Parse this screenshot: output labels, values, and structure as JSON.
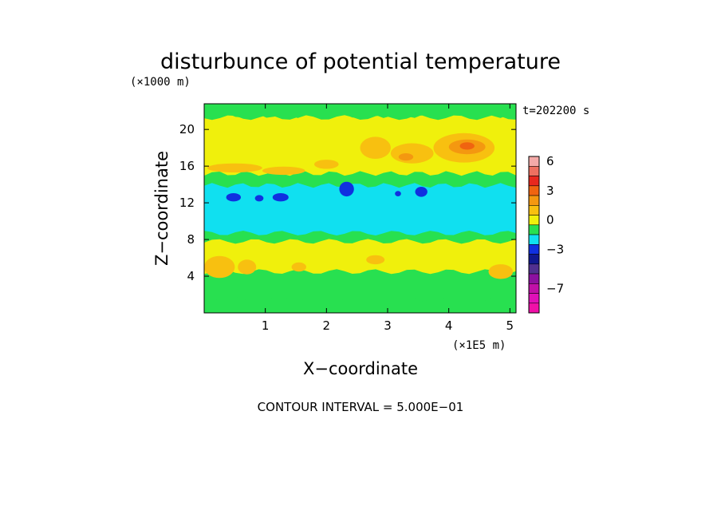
{
  "chart_data": {
    "type": "heatmap",
    "title": "disturbunce of potential temperature",
    "xlabel": "X−coordinate",
    "ylabel": "Z−coordinate",
    "x_unit": "(×1E5 m)",
    "y_unit": "(×1000 m)",
    "time_label": "t=202200 s",
    "footer": "CONTOUR INTERVAL = 5.000E−01",
    "xlim": [
      0,
      5.1
    ],
    "ylim": [
      0,
      22.8
    ],
    "x_ticks": [
      {
        "value": 1,
        "label": "1"
      },
      {
        "value": 2,
        "label": "2"
      },
      {
        "value": 3,
        "label": "3"
      },
      {
        "value": 4,
        "label": "4"
      },
      {
        "value": 5,
        "label": "5"
      }
    ],
    "y_ticks": [
      {
        "value": 4,
        "label": "4"
      },
      {
        "value": 8,
        "label": "8"
      },
      {
        "value": 12,
        "label": "12"
      },
      {
        "value": 16,
        "label": "16"
      },
      {
        "value": 20,
        "label": "20"
      }
    ],
    "colorbar": {
      "range": [
        -9,
        7
      ],
      "ticks": [
        {
          "value": 6,
          "label": "6"
        },
        {
          "value": 3,
          "label": "3"
        },
        {
          "value": 0,
          "label": "0"
        },
        {
          "value": -3,
          "label": "−3"
        },
        {
          "value": -7,
          "label": "−7"
        }
      ],
      "bins": [
        {
          "from": 6,
          "to": 7,
          "color": "#f4aaa8"
        },
        {
          "from": 5,
          "to": 6,
          "color": "#ee7060"
        },
        {
          "from": 4,
          "to": 5,
          "color": "#e8281e"
        },
        {
          "from": 3,
          "to": 4,
          "color": "#f06410"
        },
        {
          "from": 2,
          "to": 3,
          "color": "#f49810"
        },
        {
          "from": 1,
          "to": 2,
          "color": "#f8c010"
        },
        {
          "from": 0,
          "to": 1,
          "color": "#f0f00c"
        },
        {
          "from": -1,
          "to": 0,
          "color": "#28e050"
        },
        {
          "from": -2,
          "to": -1,
          "color": "#10e0f0"
        },
        {
          "from": -3,
          "to": -2,
          "color": "#1030e0"
        },
        {
          "from": -4,
          "to": -3,
          "color": "#101890"
        },
        {
          "from": -5,
          "to": -4,
          "color": "#503090"
        },
        {
          "from": -6,
          "to": -5,
          "color": "#8c10a0"
        },
        {
          "from": -7,
          "to": -6,
          "color": "#c010a8"
        },
        {
          "from": -8,
          "to": -7,
          "color": "#e010b8"
        },
        {
          "from": -9,
          "to": -8,
          "color": "#f010a8"
        }
      ]
    },
    "field_layers": [
      {
        "level": 0,
        "color": "#f0f00c",
        "shape": "band",
        "z": [
          4.5,
          21.5
        ]
      },
      {
        "level": -1,
        "color": "#28e050",
        "shape": "band",
        "z": [
          7.8,
          9.5
        ]
      },
      {
        "level": -1,
        "color": "#28e050",
        "shape": "band",
        "z": [
          9.5,
          15.2
        ]
      },
      {
        "level": -2,
        "color": "#10e0f0",
        "shape": "band",
        "z": [
          8.7,
          13.9
        ]
      },
      {
        "level": -1,
        "color": "#28e050",
        "shape": "band",
        "z": [
          0.0,
          1.5
        ]
      },
      {
        "level": -1,
        "color": "#28e050",
        "shape": "band",
        "z": [
          21.3,
          22.8
        ]
      },
      {
        "level": -3,
        "color": "#1030e0",
        "shape": "blob",
        "x": 0.48,
        "z": 12.6,
        "rx": 0.12,
        "rz": 0.45
      },
      {
        "level": -3,
        "color": "#1030e0",
        "shape": "blob",
        "x": 0.9,
        "z": 12.5,
        "rx": 0.07,
        "rz": 0.35
      },
      {
        "level": -3,
        "color": "#1030e0",
        "shape": "blob",
        "x": 1.25,
        "z": 12.6,
        "rx": 0.13,
        "rz": 0.45
      },
      {
        "level": -3,
        "color": "#1030e0",
        "shape": "blob",
        "x": 2.33,
        "z": 13.5,
        "rx": 0.12,
        "rz": 0.8
      },
      {
        "level": -3,
        "color": "#1030e0",
        "shape": "blob",
        "x": 3.17,
        "z": 13.0,
        "rx": 0.05,
        "rz": 0.3
      },
      {
        "level": -3,
        "color": "#1030e0",
        "shape": "blob",
        "x": 3.55,
        "z": 13.2,
        "rx": 0.1,
        "rz": 0.55
      },
      {
        "level": 1,
        "color": "#f8c010",
        "shape": "blob",
        "x": 2.8,
        "z": 18.0,
        "rx": 0.25,
        "rz": 1.2
      },
      {
        "level": 1,
        "color": "#f8c010",
        "shape": "blob",
        "x": 3.4,
        "z": 17.4,
        "rx": 0.35,
        "rz": 1.1
      },
      {
        "level": 1,
        "color": "#f8c010",
        "shape": "blob",
        "x": 4.25,
        "z": 18.0,
        "rx": 0.5,
        "rz": 1.6
      },
      {
        "level": 2,
        "color": "#f49810",
        "shape": "blob",
        "x": 4.3,
        "z": 18.1,
        "rx": 0.3,
        "rz": 0.8
      },
      {
        "level": 3,
        "color": "#f06410",
        "shape": "blob",
        "x": 4.3,
        "z": 18.2,
        "rx": 0.12,
        "rz": 0.4
      },
      {
        "level": 2,
        "color": "#f49810",
        "shape": "blob",
        "x": 3.3,
        "z": 17.0,
        "rx": 0.12,
        "rz": 0.4
      },
      {
        "level": 1,
        "color": "#f8c010",
        "shape": "blob",
        "x": 0.5,
        "z": 15.8,
        "rx": 0.45,
        "rz": 0.5
      },
      {
        "level": 1,
        "color": "#f8c010",
        "shape": "blob",
        "x": 1.3,
        "z": 15.5,
        "rx": 0.35,
        "rz": 0.45
      },
      {
        "level": 1,
        "color": "#f8c010",
        "shape": "blob",
        "x": 2.0,
        "z": 16.2,
        "rx": 0.2,
        "rz": 0.5
      },
      {
        "level": 1,
        "color": "#f8c010",
        "shape": "blob",
        "x": 0.25,
        "z": 5.0,
        "rx": 0.25,
        "rz": 1.2
      },
      {
        "level": 1,
        "color": "#f8c010",
        "shape": "blob",
        "x": 0.7,
        "z": 5.0,
        "rx": 0.15,
        "rz": 0.8
      },
      {
        "level": 1,
        "color": "#f8c010",
        "shape": "blob",
        "x": 1.55,
        "z": 5.0,
        "rx": 0.12,
        "rz": 0.5
      },
      {
        "level": 1,
        "color": "#f8c010",
        "shape": "blob",
        "x": 2.8,
        "z": 5.8,
        "rx": 0.15,
        "rz": 0.5
      },
      {
        "level": 1,
        "color": "#f8c010",
        "shape": "blob",
        "x": 4.85,
        "z": 4.5,
        "rx": 0.2,
        "rz": 0.8
      }
    ]
  }
}
